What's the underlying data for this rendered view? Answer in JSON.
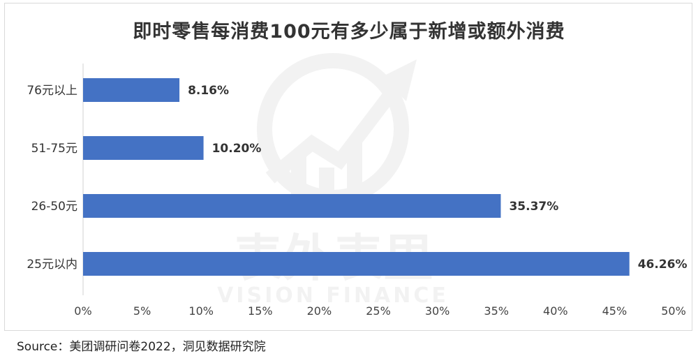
{
  "chart_data": {
    "type": "bar",
    "orientation": "horizontal",
    "title": "即时零售每消费100元有多少属于新增或额外消费",
    "categories": [
      "76元以上",
      "51-75元",
      "26-50元",
      "25元以内"
    ],
    "values": [
      8.16,
      10.2,
      35.37,
      46.26
    ],
    "data_labels": [
      "8.16%",
      "10.20%",
      "35.37%",
      "46.26%"
    ],
    "x_ticks": [
      "0%",
      "5%",
      "10%",
      "15%",
      "20%",
      "25%",
      "30%",
      "35%",
      "40%",
      "45%",
      "50%"
    ],
    "xlim": [
      0,
      50
    ],
    "grid": false,
    "bar_color": "#4472C4"
  },
  "source": "Source：美团调研问卷2022，洞见数据研究院",
  "watermark": {
    "text_cn": "表外表里",
    "text_en": "VISION FINANCE"
  }
}
